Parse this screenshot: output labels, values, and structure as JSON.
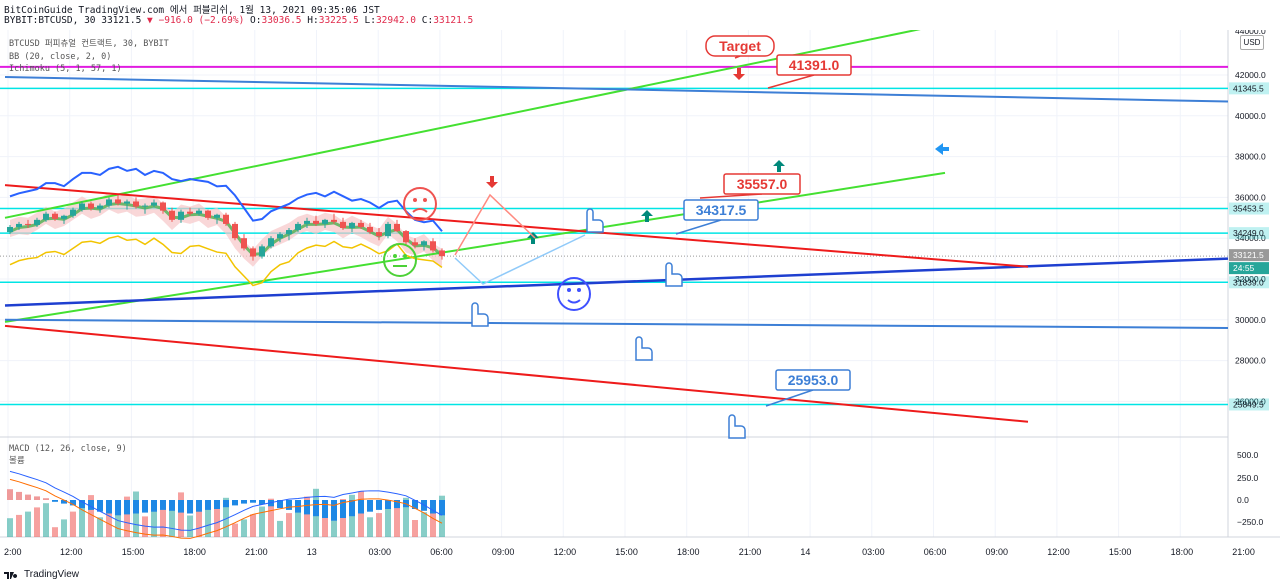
{
  "header": {
    "line1": "BitCoinGuide TradingView.com 에서 퍼블리쉬, 1월 13, 2021 09:35:06 JST",
    "symbol": "BYBIT:BTCUSD, 30",
    "last": "33121.5",
    "change": "−916.0 (−2.69%)",
    "o_label": "O:",
    "o": "33036.5",
    "h_label": "H:",
    "h": "33225.5",
    "l_label": "L:",
    "l": "32942.0",
    "c_label": "C:",
    "c": "33121.5"
  },
  "indicators": {
    "title": "BTCUSD 퍼피츄얼 컨트랙트, 30, BYBIT",
    "bb": "BB (20, close, 2, 0)",
    "ichimoku": "Ichimoku (5, 1, 57, 1)"
  },
  "macd_panel": {
    "title": "MACD (12, 26, close, 9)",
    "sub": "볼륨"
  },
  "currency_button": "USD",
  "footer": {
    "brand": "TradingView"
  },
  "colors": {
    "up": "#26a69a",
    "down": "#ef5350",
    "bb": "#2962ff",
    "ma": "#4caf50",
    "green_channel": "#44e031",
    "red_channel": "#ee1b1b",
    "blue_line": "#1e3fd0",
    "magenta": "#e01be0",
    "cyan": "#00e5e5",
    "steel": "#3d7fd6"
  },
  "chart_data": {
    "type": "candlestick",
    "y_ticks": [
      42000,
      40000,
      38000,
      36000,
      34000,
      32000,
      30000,
      28000,
      26000
    ],
    "y_top_partial": "44000.0",
    "x_ticks": [
      "12:00",
      "15:00",
      "18:00",
      "21:00",
      "13",
      "03:00",
      "06:00",
      "09:00",
      "12:00",
      "15:00",
      "18:00",
      "21:00",
      "14",
      "03:00",
      "06:00",
      "09:00",
      "12:00",
      "15:00",
      "18:00",
      "21:00"
    ],
    "x_first_partial": "2:00",
    "price_labels": [
      {
        "text": "41345.5",
        "color": "#00c8c8"
      },
      {
        "text": "35453.5",
        "color": "#00c8c8"
      },
      {
        "text": "34249.0",
        "color": "#00c8c8"
      },
      {
        "text": "33121.5",
        "color": "#999999"
      },
      {
        "text": "24:55",
        "color": "#26a69a"
      },
      {
        "text": "31839.0",
        "color": "#00c8c8"
      },
      {
        "text": "25849.5",
        "color": "#00c8c8"
      }
    ],
    "annotations": [
      {
        "text": "Target",
        "color": "#e53935"
      },
      {
        "text": "41391.0",
        "color": "#e53935"
      },
      {
        "text": "35557.0",
        "color": "#e53935"
      },
      {
        "text": "34317.5",
        "color": "#3d7fd6"
      },
      {
        "text": "25953.0",
        "color": "#3d7fd6"
      }
    ],
    "horizontal_levels": [
      42400,
      41345.5,
      35453.5,
      34249,
      31839,
      25849.5
    ],
    "candles": [
      [
        34300,
        34650,
        34200,
        34550
      ],
      [
        34550,
        34800,
        34400,
        34700
      ],
      [
        34700,
        34900,
        34500,
        34650
      ],
      [
        34650,
        35000,
        34550,
        34900
      ],
      [
        34900,
        35300,
        34800,
        35200
      ],
      [
        35200,
        35300,
        34850,
        34950
      ],
      [
        34950,
        35150,
        34700,
        35100
      ],
      [
        35100,
        35500,
        35000,
        35400
      ],
      [
        35400,
        35800,
        35300,
        35700
      ],
      [
        35700,
        35800,
        35350,
        35450
      ],
      [
        35450,
        35700,
        35250,
        35600
      ],
      [
        35600,
        36000,
        35500,
        35900
      ],
      [
        35900,
        36100,
        35600,
        35700
      ],
      [
        35700,
        35900,
        35400,
        35800
      ],
      [
        35800,
        36000,
        35450,
        35550
      ],
      [
        35550,
        35700,
        35200,
        35600
      ],
      [
        35600,
        35900,
        35500,
        35750
      ],
      [
        35750,
        35800,
        35200,
        35350
      ],
      [
        35350,
        35500,
        34800,
        34900
      ],
      [
        34900,
        35400,
        34750,
        35300
      ],
      [
        35300,
        35500,
        35100,
        35200
      ],
      [
        35200,
        35450,
        35100,
        35350
      ],
      [
        35350,
        35400,
        34900,
        35000
      ],
      [
        35000,
        35200,
        34700,
        35150
      ],
      [
        35150,
        35250,
        34600,
        34700
      ],
      [
        34700,
        34800,
        33900,
        34000
      ],
      [
        34000,
        34200,
        33400,
        33500
      ],
      [
        33500,
        33600,
        32900,
        33100
      ],
      [
        33100,
        33700,
        33000,
        33600
      ],
      [
        33600,
        34100,
        33500,
        34000
      ],
      [
        34000,
        34300,
        33800,
        34200
      ],
      [
        34200,
        34500,
        33900,
        34400
      ],
      [
        34400,
        34800,
        34300,
        34700
      ],
      [
        34700,
        35000,
        34500,
        34850
      ],
      [
        34850,
        35100,
        34600,
        34700
      ],
      [
        34700,
        34950,
        34500,
        34900
      ],
      [
        34900,
        35200,
        34700,
        34800
      ],
      [
        34800,
        35000,
        34400,
        34500
      ],
      [
        34500,
        34800,
        34300,
        34750
      ],
      [
        34750,
        34900,
        34450,
        34550
      ],
      [
        34550,
        34750,
        34200,
        34300
      ],
      [
        34300,
        34500,
        33900,
        34100
      ],
      [
        34100,
        34800,
        34000,
        34700
      ],
      [
        34700,
        34900,
        34300,
        34350
      ],
      [
        34350,
        34400,
        33700,
        33800
      ],
      [
        33800,
        34000,
        33500,
        33650
      ],
      [
        33650,
        33900,
        33400,
        33850
      ],
      [
        33850,
        34000,
        33300,
        33400
      ],
      [
        33400,
        33500,
        32950,
        33121.5
      ]
    ],
    "macd": [
      {
        "v": 120,
        "up": true
      },
      {
        "v": 90,
        "up": false
      },
      {
        "v": 60,
        "up": true
      },
      {
        "v": 40,
        "up": false
      },
      {
        "v": 20,
        "up": true
      },
      {
        "v": -20,
        "up": false
      },
      {
        "v": -40,
        "up": true
      },
      {
        "v": -60,
        "up": false
      },
      {
        "v": -90,
        "up": true
      },
      {
        "v": -110,
        "up": false
      },
      {
        "v": -130,
        "up": true
      },
      {
        "v": -150,
        "up": false
      },
      {
        "v": -170,
        "up": true
      },
      {
        "v": -160,
        "up": false
      },
      {
        "v": -150,
        "up": true
      },
      {
        "v": -140,
        "up": false
      },
      {
        "v": -130,
        "up": true
      },
      {
        "v": -110,
        "up": false
      },
      {
        "v": -120,
        "up": true
      },
      {
        "v": -140,
        "up": false
      },
      {
        "v": -150,
        "up": true
      },
      {
        "v": -130,
        "up": false
      },
      {
        "v": -110,
        "up": true
      },
      {
        "v": -100,
        "up": false
      },
      {
        "v": -80,
        "up": true
      },
      {
        "v": -60,
        "up": false
      },
      {
        "v": -40,
        "up": true
      },
      {
        "v": -30,
        "up": false
      },
      {
        "v": -50,
        "up": true
      },
      {
        "v": -70,
        "up": false
      },
      {
        "v": -90,
        "up": true
      },
      {
        "v": -110,
        "up": false
      },
      {
        "v": -140,
        "up": true
      },
      {
        "v": -160,
        "up": false
      },
      {
        "v": -180,
        "up": true
      },
      {
        "v": -200,
        "up": false
      },
      {
        "v": -230,
        "up": true
      },
      {
        "v": -200,
        "up": false
      },
      {
        "v": -180,
        "up": true
      },
      {
        "v": -150,
        "up": false
      },
      {
        "v": -130,
        "up": true
      },
      {
        "v": -110,
        "up": false
      },
      {
        "v": -100,
        "up": true
      },
      {
        "v": -90,
        "up": false
      },
      {
        "v": -80,
        "up": true
      },
      {
        "v": -100,
        "up": false
      },
      {
        "v": -120,
        "up": true
      },
      {
        "v": -150,
        "up": false
      },
      {
        "v": -170,
        "up": true
      }
    ],
    "macd_ticks": [
      500,
      250,
      0,
      -250
    ]
  }
}
